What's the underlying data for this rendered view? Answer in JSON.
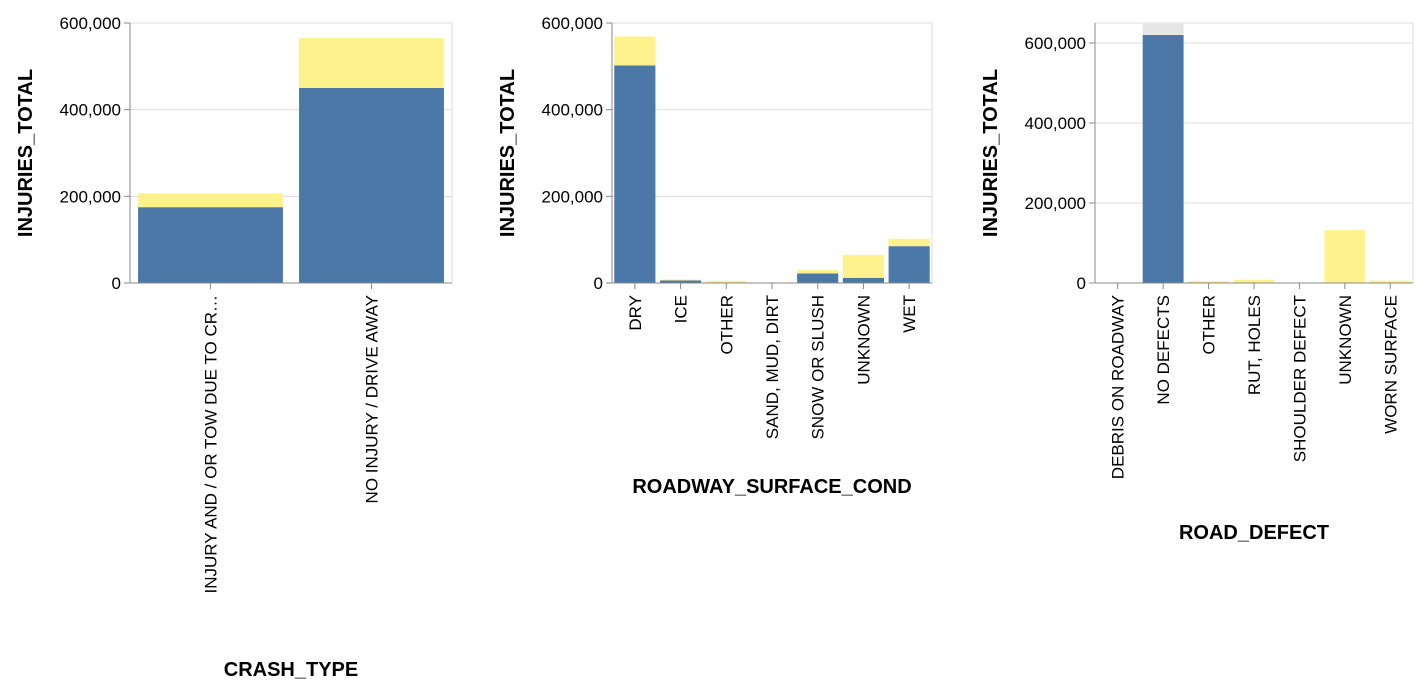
{
  "colors": {
    "primary": "#4c78a8",
    "secondary": "#fdf28b",
    "tertiary": "#e6e6e6",
    "grid": "#dddddd",
    "axis": "#888888"
  },
  "chart_data": [
    {
      "type": "bar",
      "stacked": true,
      "xlabel": "CRASH_TYPE",
      "ylabel": "INJURIES_TOTAL",
      "ylim": [
        0,
        600000
      ],
      "yticks": [
        0,
        200000,
        400000,
        600000
      ],
      "ytick_labels": [
        "0",
        "200,000",
        "400,000",
        "600,000"
      ],
      "categories": [
        "INJURY AND / OR TOW DUE TO CR…",
        "NO INJURY / DRIVE AWAY"
      ],
      "series": [
        {
          "color": "primary",
          "values": [
            175000,
            450000
          ]
        },
        {
          "color": "secondary",
          "values": [
            32000,
            115000
          ]
        }
      ],
      "grid": true
    },
    {
      "type": "bar",
      "stacked": true,
      "xlabel": "ROADWAY_SURFACE_COND",
      "ylabel": "INJURIES_TOTAL",
      "ylim": [
        0,
        600000
      ],
      "yticks": [
        0,
        200000,
        400000,
        600000
      ],
      "ytick_labels": [
        "0",
        "200,000",
        "400,000",
        "600,000"
      ],
      "categories": [
        "DRY",
        "ICE",
        "OTHER",
        "SAND, MUD, DIRT",
        "SNOW OR SLUSH",
        "UNKNOWN",
        "WET"
      ],
      "series": [
        {
          "color": "primary",
          "values": [
            502000,
            6000,
            1000,
            300,
            22000,
            12000,
            85000
          ]
        },
        {
          "color": "secondary",
          "values": [
            67000,
            2000,
            4000,
            1000,
            8000,
            53000,
            17000
          ]
        }
      ],
      "grid": true
    },
    {
      "type": "bar",
      "stacked": true,
      "xlabel": "ROAD_DEFECT",
      "ylabel": "INJURIES_TOTAL",
      "ylim": [
        0,
        650000
      ],
      "yticks": [
        0,
        200000,
        400000,
        600000
      ],
      "ytick_labels": [
        "0",
        "200,000",
        "400,000",
        "600,000"
      ],
      "categories": [
        "DEBRIS ON ROADWAY",
        "NO DEFECTS",
        "OTHER",
        "RUT, HOLES",
        "SHOULDER DEFECT",
        "UNKNOWN",
        "WORN SURFACE"
      ],
      "series": [
        {
          "color": "primary",
          "values": [
            0,
            620000,
            0,
            0,
            0,
            0,
            0
          ]
        },
        {
          "color": "secondary",
          "values": [
            1000,
            0,
            5000,
            8000,
            1000,
            132000,
            6000
          ]
        },
        {
          "color": "tertiary",
          "values": [
            0,
            30000,
            0,
            0,
            0,
            0,
            0
          ]
        }
      ],
      "grid": true
    }
  ]
}
